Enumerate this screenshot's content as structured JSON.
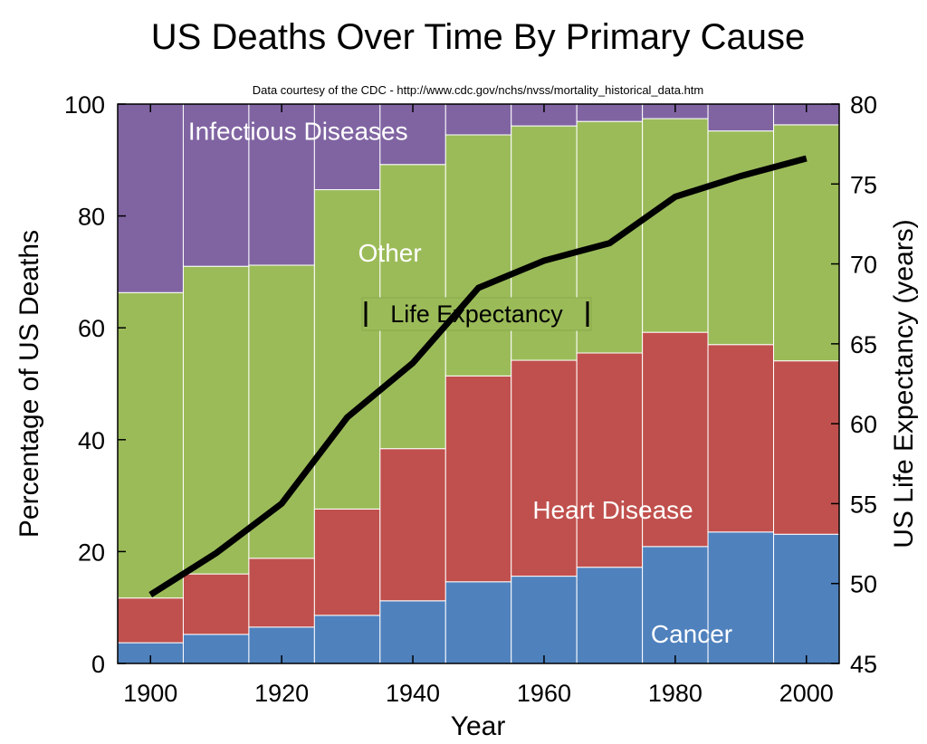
{
  "chart_data": {
    "type": "bar",
    "stacked": true,
    "title": "US Deaths Over Time By Primary Cause",
    "subtitle": "Data courtesy of the CDC - http://www.cdc.gov/nchs/nvss/mortality_historical_data.htm",
    "xlabel": "Year",
    "ylabel": "Percentage of US Deaths",
    "y2label": "US Life Expectancy (years)",
    "categories": [
      1900,
      1910,
      1920,
      1930,
      1940,
      1950,
      1960,
      1970,
      1980,
      1990,
      2000
    ],
    "x_ticks": [
      "1900",
      "1920",
      "1940",
      "1960",
      "1980",
      "2000"
    ],
    "y_ticks": [
      "0",
      "20",
      "40",
      "60",
      "80",
      "100"
    ],
    "y2_ticks": [
      "45",
      "50",
      "55",
      "60",
      "65",
      "70",
      "75",
      "80"
    ],
    "ylim": [
      0,
      100
    ],
    "y2lim": [
      45,
      80
    ],
    "series": [
      {
        "name": "Cancer",
        "color": "#4f81bd",
        "values": [
          3.7,
          5.2,
          6.5,
          8.6,
          11.2,
          14.6,
          15.6,
          17.2,
          20.9,
          23.5,
          23.1
        ]
      },
      {
        "name": "Heart Disease",
        "color": "#c0504d",
        "values": [
          8.0,
          10.8,
          12.3,
          19.0,
          27.2,
          36.8,
          38.6,
          38.3,
          38.3,
          33.5,
          31.0
        ]
      },
      {
        "name": "Other",
        "color": "#9bbb59",
        "values": [
          54.6,
          55.0,
          52.4,
          57.1,
          50.8,
          43.1,
          41.9,
          41.4,
          38.2,
          38.2,
          42.2
        ]
      },
      {
        "name": "Infectious Diseases",
        "color": "#8064a2",
        "values": [
          33.7,
          29.0,
          28.8,
          15.3,
          10.8,
          5.5,
          3.9,
          3.1,
          2.6,
          4.8,
          3.7
        ]
      }
    ],
    "line": {
      "name": "Life Expectancy",
      "axis": "right",
      "color": "#000000",
      "x": [
        1900,
        1910,
        1920,
        1930,
        1940,
        1950,
        1960,
        1970,
        1980,
        1990,
        2000
      ],
      "values": [
        49.3,
        51.9,
        55.0,
        60.4,
        63.8,
        68.5,
        70.2,
        71.3,
        74.2,
        75.5,
        76.6
      ]
    },
    "region_labels": [
      {
        "series": "Infectious Diseases",
        "text": "Infectious Diseases",
        "x": 1922.5,
        "y": 95.2
      },
      {
        "series": "Other",
        "text": "Other",
        "x": 1936.5,
        "y": 73.5
      },
      {
        "series": "Heart Disease",
        "text": "Heart Disease",
        "x": 1970.5,
        "y": 27.5
      },
      {
        "series": "Cancer",
        "text": "Cancer",
        "x": 1982.5,
        "y": 5.3
      }
    ],
    "legend": {
      "label": "Life Expectancy",
      "position": "center"
    },
    "grid": false,
    "background": "#ffffff"
  }
}
